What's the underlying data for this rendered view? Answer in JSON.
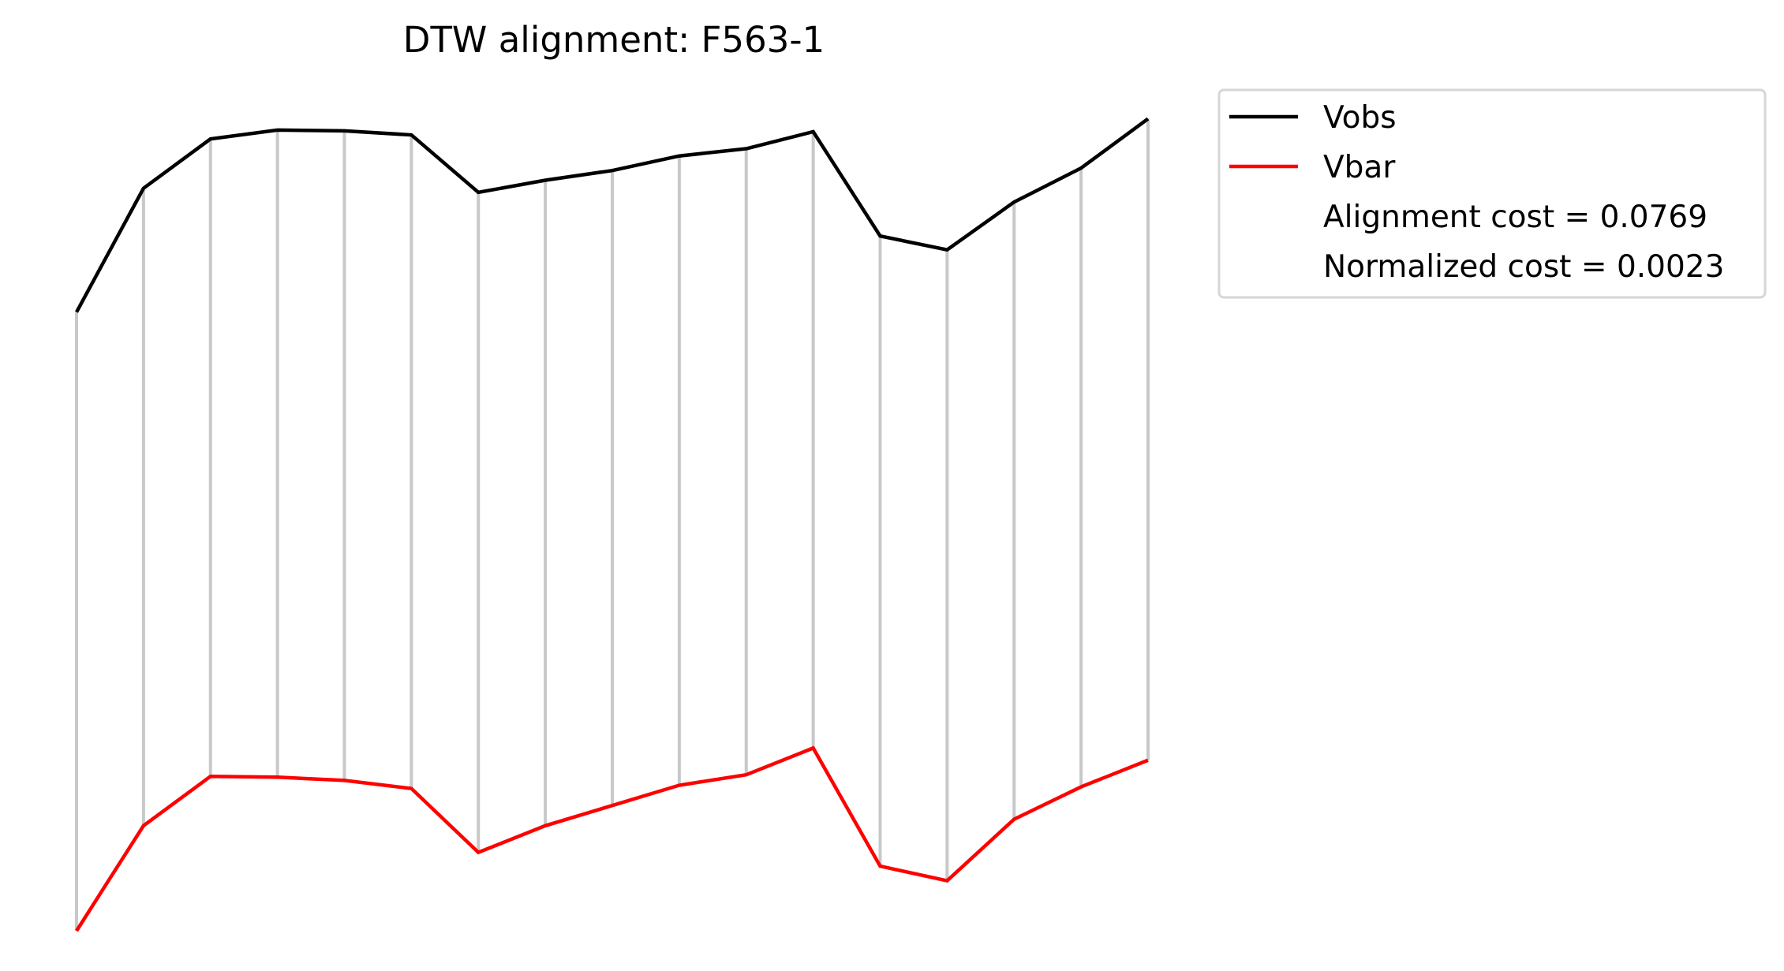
{
  "chart_data": {
    "type": "line",
    "title": "DTW alignment: F563-1",
    "xlabel": "",
    "ylabel": "",
    "axes_visible": false,
    "grid": false,
    "legend_position": "outside-upper-right",
    "x": [
      0,
      1,
      2,
      3,
      4,
      5,
      6,
      7,
      8,
      9,
      10,
      11,
      12,
      13,
      14,
      15,
      16
    ],
    "series": [
      {
        "name": "Vobs",
        "color": "#000000",
        "values": [
          80.0,
          95.3,
          101.4,
          102.5,
          102.4,
          101.9,
          94.8,
          96.3,
          97.5,
          99.3,
          100.2,
          102.3,
          89.4,
          87.7,
          93.6,
          97.8,
          103.9
        ]
      },
      {
        "name": "Vbar",
        "color": "#ff0000",
        "values": [
          3.5,
          16.5,
          22.6,
          22.5,
          22.1,
          21.1,
          13.2,
          16.5,
          19.0,
          21.5,
          22.8,
          26.1,
          11.5,
          9.7,
          17.3,
          21.3,
          24.6
        ]
      }
    ],
    "alignment_pairs": [
      [
        0,
        0
      ],
      [
        1,
        1
      ],
      [
        2,
        2
      ],
      [
        3,
        3
      ],
      [
        4,
        4
      ],
      [
        5,
        5
      ],
      [
        6,
        6
      ],
      [
        7,
        7
      ],
      [
        8,
        8
      ],
      [
        9,
        9
      ],
      [
        10,
        10
      ],
      [
        11,
        11
      ],
      [
        12,
        12
      ],
      [
        13,
        13
      ],
      [
        14,
        14
      ],
      [
        15,
        15
      ],
      [
        16,
        16
      ]
    ],
    "alignment_line_color": "#c8c8c8",
    "ylim": [
      0,
      110
    ],
    "legend": {
      "vobs_label": "Vobs",
      "vbar_label": "Vbar",
      "alignment_cost_text": "Alignment cost = 0.0769",
      "normalized_cost_text": "Normalized cost = 0.0023"
    }
  }
}
